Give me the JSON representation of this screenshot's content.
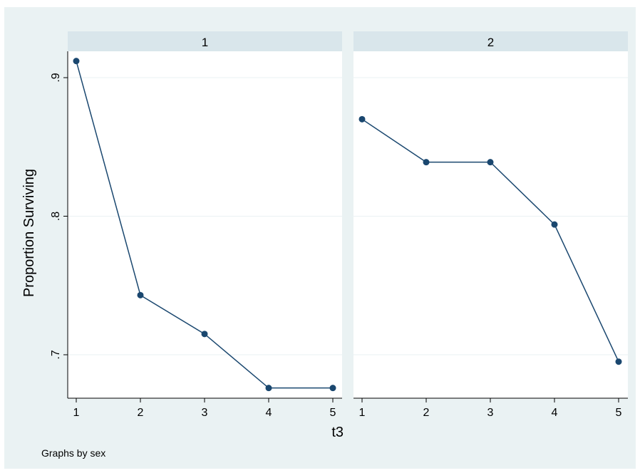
{
  "chart_data": {
    "type": "line",
    "by_variable_note": "Graphs by sex",
    "xlabel": "t3",
    "ylabel": "Proportion Surviving",
    "ylim": [
      0.67,
      0.92
    ],
    "yticks": [
      0.7,
      0.8,
      0.9
    ],
    "ytick_labels": [
      ".7",
      ".8",
      ".9"
    ],
    "xticks": [
      1,
      2,
      3,
      4,
      5
    ],
    "xtick_labels": [
      "1",
      "2",
      "3",
      "4",
      "5"
    ],
    "xlim": [
      0.9,
      5.1
    ],
    "grid": true,
    "colors": {
      "outer_background": "#eaf2f3",
      "plot_background": "#ffffff",
      "panel_header": "#d9e6eb",
      "line": "#1a476f",
      "gridline": "#eaf2f3"
    },
    "panels": [
      {
        "title": "1",
        "x": [
          1,
          2,
          3,
          4,
          5
        ],
        "y": [
          0.912,
          0.743,
          0.715,
          0.676,
          0.676
        ]
      },
      {
        "title": "2",
        "x": [
          1,
          2,
          3,
          4,
          5
        ],
        "y": [
          0.87,
          0.839,
          0.839,
          0.794,
          0.695
        ]
      }
    ]
  }
}
